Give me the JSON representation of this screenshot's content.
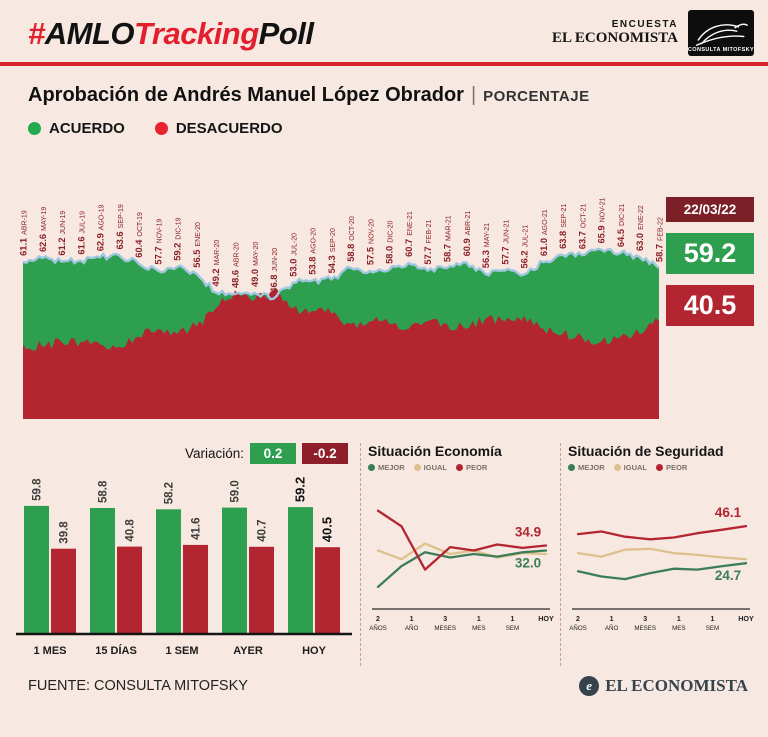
{
  "header": {
    "title": {
      "hash": "#",
      "amlo": "AMLO",
      "tracking": "Tracking",
      "poll": "Poll"
    },
    "encuesta_label": "ENCUESTA",
    "economista_label": "EL ECONOMISTA",
    "mitofsky_label": "CONSULTA MITOFSKY"
  },
  "subtitle": {
    "text": "Aprobación de Andrés Manuel López Obrador",
    "separator": "|",
    "unit": "PORCENTAJE"
  },
  "legend": {
    "acuerdo": "ACUERDO",
    "desacuerdo": "DESACUERDO"
  },
  "current": {
    "date": "22/03/22",
    "acuerdo": "59.2",
    "desacuerdo": "40.5"
  },
  "variacion": {
    "label": "Variación:",
    "acuerdo": "0.2",
    "desacuerdo": "-0.2"
  },
  "footer": {
    "source": "FUENTE: CONSULTA MITOFSKY",
    "brand": "EL ECONOMISTA",
    "brand_initial": "e"
  },
  "colors": {
    "green": "#2e9e4f",
    "red": "#b32531",
    "bright_red": "#e8232e",
    "light_blue": "#9fc8e0",
    "label_maroon": "#8c2127",
    "background": "#f7e8e1",
    "tan": "#ddc18c",
    "dark_green": "#3c7e58"
  },
  "chart_data": [
    {
      "id": "tracking_poll",
      "type": "area",
      "title": "Aprobación de Andrés Manuel López Obrador (PORCENTAJE)",
      "ylim": [
        0,
        70
      ],
      "categories": [
        "ABR-19",
        "MAY-19",
        "JUN-19",
        "JUL-19",
        "AGO-19",
        "SEP-19",
        "OCT-19",
        "NOV-19",
        "DIC-19",
        "ENE-20",
        "MAR-20",
        "ABR-20",
        "MAY-20",
        "JUN-20",
        "JUL-20",
        "AGO-20",
        "SEP-20",
        "OCT-20",
        "NOV-20",
        "DIC-20",
        "ENE-21",
        "FEB-21",
        "MAR-21",
        "ABR-21",
        "MAY-21",
        "JUN-21",
        "JUL-21",
        "AGO-21",
        "SEP-21",
        "OCT-21",
        "NOV-21",
        "DIC-21",
        "ENE-22",
        "FEB-22"
      ],
      "series": [
        {
          "name": "ACUERDO",
          "color": "#2e9e4f",
          "values": [
            61.1,
            62.6,
            61.2,
            61.6,
            62.9,
            63.6,
            60.4,
            57.7,
            59.2,
            56.5,
            49.2,
            48.6,
            49.0,
            46.8,
            53.0,
            53.8,
            54.3,
            58.8,
            57.5,
            58.0,
            60.7,
            57.7,
            58.7,
            60.9,
            56.3,
            57.7,
            56.2,
            61.0,
            63.8,
            63.7,
            65.9,
            64.5,
            63.0,
            58.7
          ]
        },
        {
          "name": "DESACUERDO (estimado del gráfico)",
          "color": "#b32531",
          "values": [
            29,
            28,
            30,
            30,
            29,
            28,
            32,
            35,
            33,
            36,
            43,
            50,
            46,
            50,
            43,
            42,
            41,
            37,
            38,
            37,
            35,
            38,
            37,
            35,
            39,
            38,
            40,
            35,
            33,
            32,
            30,
            32,
            33,
            38
          ]
        }
      ],
      "current": {
        "date": "22/03/22",
        "acuerdo": 59.2,
        "desacuerdo": 40.5
      }
    },
    {
      "id": "variacion_bars",
      "type": "bar",
      "categories": [
        "1 MES",
        "15 DÍAS",
        "1 SEM",
        "AYER",
        "HOY"
      ],
      "series": [
        {
          "name": "ACUERDO",
          "color": "#2e9e4f",
          "values": [
            59.8,
            58.8,
            58.2,
            59.0,
            59.2
          ]
        },
        {
          "name": "DESACUERDO",
          "color": "#b32531",
          "values": [
            39.8,
            40.8,
            41.6,
            40.7,
            40.5
          ]
        }
      ],
      "variation": {
        "acuerdo": 0.2,
        "desacuerdo": -0.2
      },
      "ylim": [
        0,
        70
      ]
    },
    {
      "id": "economia",
      "type": "line",
      "title": "Situación Economía",
      "legend": [
        "MEJOR",
        "IGUAL",
        "PEOR"
      ],
      "x_ticks": [
        [
          "2",
          "AÑOS"
        ],
        [
          "1",
          "AÑO"
        ],
        [
          "3",
          "MESES"
        ],
        [
          "1",
          "MES"
        ],
        [
          "1",
          "SEM"
        ],
        [
          "HOY",
          ""
        ]
      ],
      "ylim": [
        0,
        60
      ],
      "series": [
        {
          "name": "MEJOR",
          "color": "#3c7e58",
          "values": [
            11,
            23,
            31,
            28,
            30,
            28.5,
            31,
            32.0
          ],
          "end_label": "32.0"
        },
        {
          "name": "IGUAL",
          "color": "#ddc18c",
          "values": [
            32,
            27,
            36,
            30,
            32,
            28,
            30.5,
            30
          ]
        },
        {
          "name": "PEOR",
          "color": "#b32531",
          "values": [
            55,
            46,
            21,
            34,
            32,
            35.5,
            33.5,
            34.9
          ],
          "end_label": "34.9"
        }
      ]
    },
    {
      "id": "seguridad",
      "type": "line",
      "title": "Situación de Seguridad",
      "legend": [
        "MEJOR",
        "IGUAL",
        "PEOR"
      ],
      "x_ticks": [
        [
          "2",
          "AÑOS"
        ],
        [
          "1",
          "AÑO"
        ],
        [
          "3",
          "MESES"
        ],
        [
          "1",
          "MES"
        ],
        [
          "1",
          "SEM"
        ],
        [
          "HOY",
          ""
        ]
      ],
      "ylim": [
        0,
        60
      ],
      "series": [
        {
          "name": "MEJOR",
          "color": "#3c7e58",
          "values": [
            20,
            17,
            15.5,
            19,
            21.5,
            21,
            23,
            24.7
          ],
          "end_label": "24.7"
        },
        {
          "name": "IGUAL",
          "color": "#ddc18c",
          "values": [
            30.5,
            28.5,
            32.5,
            33,
            30.5,
            29.5,
            28,
            27
          ]
        },
        {
          "name": "PEOR",
          "color": "#b32531",
          "values": [
            41.5,
            43,
            40,
            38.5,
            39.5,
            42,
            44,
            46.1
          ],
          "end_label": "46.1"
        }
      ]
    }
  ]
}
